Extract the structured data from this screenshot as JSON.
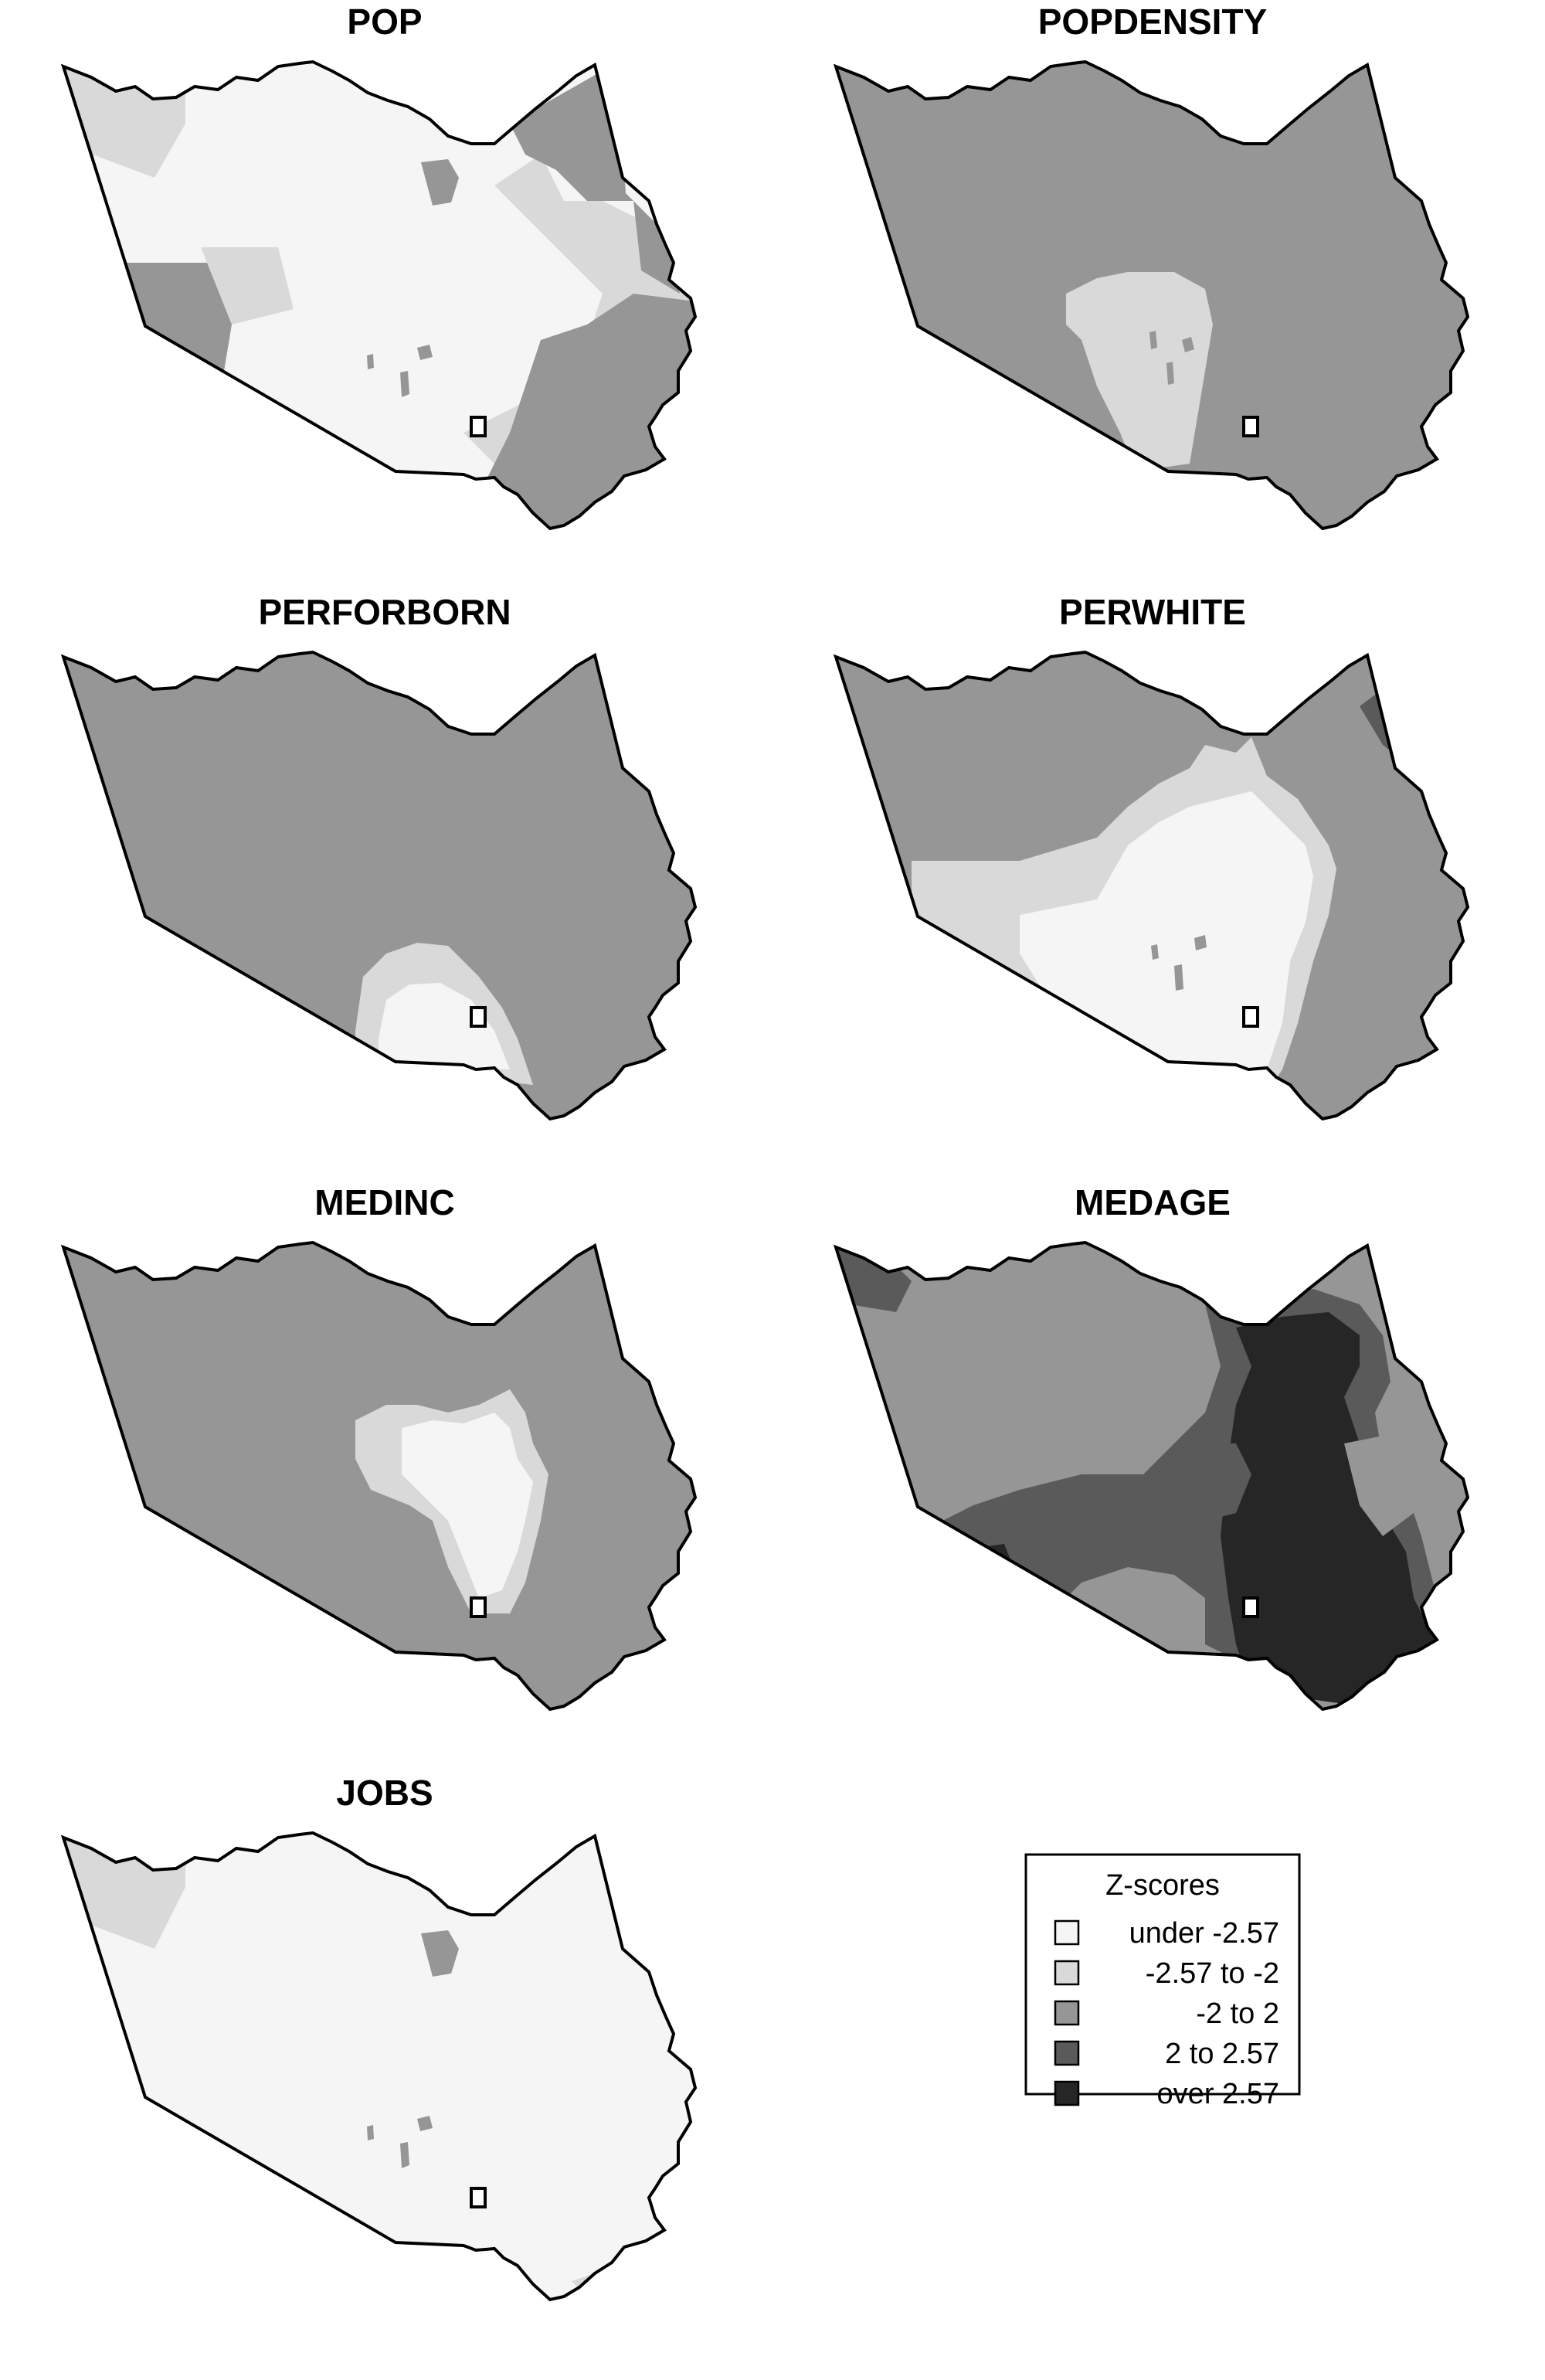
{
  "maps": [
    {
      "id": "pop",
      "title": "POP"
    },
    {
      "id": "popdensity",
      "title": "POPDENSITY"
    },
    {
      "id": "perforborn",
      "title": "PERFORBORN"
    },
    {
      "id": "perwhite",
      "title": "PERWHITE"
    },
    {
      "id": "medinc",
      "title": "MEDINC"
    },
    {
      "id": "medage",
      "title": "MEDAGE"
    },
    {
      "id": "jobs",
      "title": "JOBS"
    }
  ],
  "legend": {
    "title": "Z-scores",
    "classes": [
      {
        "label": "under -2.57",
        "color": "#f5f5f5"
      },
      {
        "label": "-2.57 to -2",
        "color": "#d9d9d9"
      },
      {
        "label": "-2 to 2",
        "color": "#969696"
      },
      {
        "label": "2 to 2.57",
        "color": "#5a5a5a"
      },
      {
        "label": "over 2.57",
        "color": "#262626"
      }
    ]
  }
}
